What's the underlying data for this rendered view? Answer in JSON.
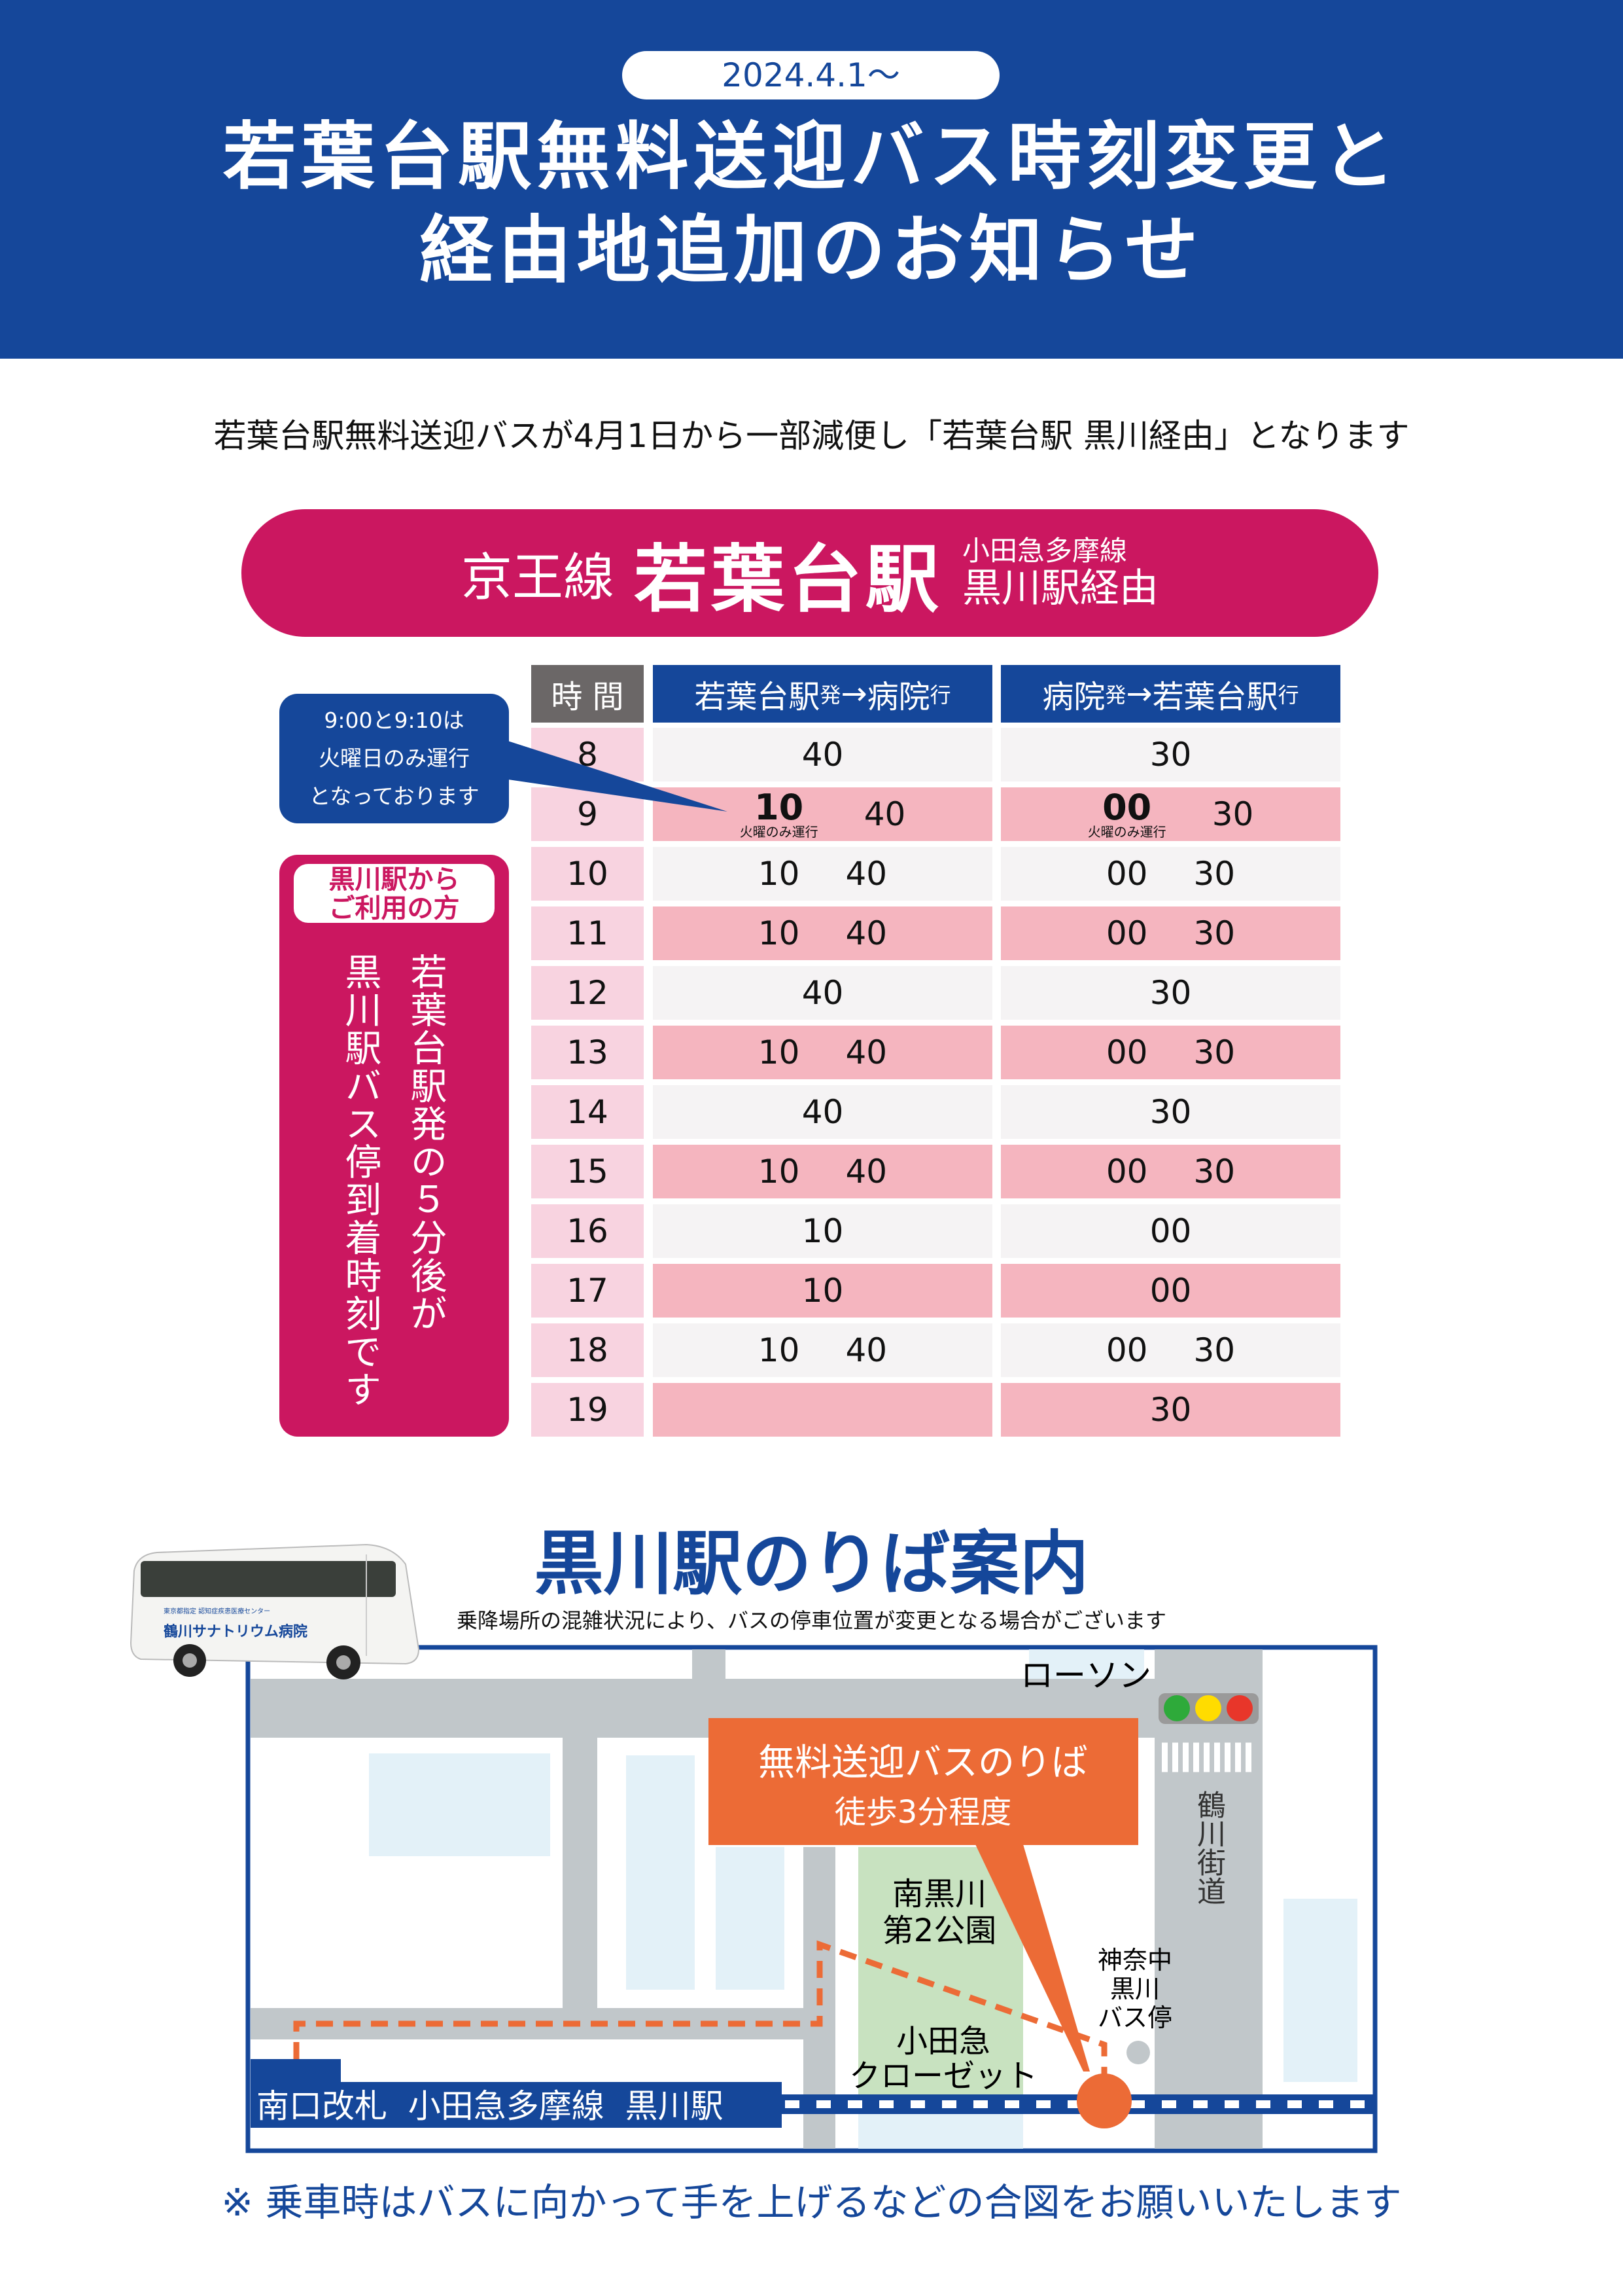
{
  "header": {
    "date": "2024.4.1〜",
    "title_line1": "若葉台駅無料送迎バス時刻変更と",
    "title_line2": "経由地追加のお知らせ"
  },
  "lead": "若葉台駅無料送迎バスが4月1日から一部減便し「若葉台駅 黒川経由」となります",
  "banner": {
    "line": "京王線",
    "station": "若葉台駅",
    "via_line": "小田急多摩線",
    "via": "黒川駅経由"
  },
  "callout": [
    "9:00と9:10は",
    "火曜日のみ運行",
    "となっております"
  ],
  "kurokawa_box": {
    "heading1": "黒川駅から",
    "heading2": "ご利用の方",
    "col1": "若葉台駅発の５分後が",
    "col2": "黒川駅バス停到着時刻です"
  },
  "timetable": {
    "headers": {
      "hour": "時 間",
      "out_from": "若葉台駅",
      "out_dep": "発",
      "out_arrow": "→",
      "out_to": "病院",
      "out_arr": "行",
      "in_from": "病院",
      "in_dep": "発",
      "in_arrow": "→",
      "in_to": "若葉台駅",
      "in_arr": "行"
    },
    "tuesday_note": "火曜のみ運行",
    "rows": [
      {
        "hour": "8",
        "out": [
          "40"
        ],
        "in": [
          "30"
        ]
      },
      {
        "hour": "9",
        "out": [
          "10",
          "40"
        ],
        "in": [
          "00",
          "30"
        ],
        "tuesday_only_first": true
      },
      {
        "hour": "10",
        "out": [
          "10",
          "40"
        ],
        "in": [
          "00",
          "30"
        ]
      },
      {
        "hour": "11",
        "out": [
          "10",
          "40"
        ],
        "in": [
          "00",
          "30"
        ]
      },
      {
        "hour": "12",
        "out": [
          "40"
        ],
        "in": [
          "30"
        ]
      },
      {
        "hour": "13",
        "out": [
          "10",
          "40"
        ],
        "in": [
          "00",
          "30"
        ]
      },
      {
        "hour": "14",
        "out": [
          "40"
        ],
        "in": [
          "30"
        ]
      },
      {
        "hour": "15",
        "out": [
          "10",
          "40"
        ],
        "in": [
          "00",
          "30"
        ]
      },
      {
        "hour": "16",
        "out": [
          "10"
        ],
        "in": [
          "00"
        ]
      },
      {
        "hour": "17",
        "out": [
          "10"
        ],
        "in": [
          "00"
        ]
      },
      {
        "hour": "18",
        "out": [
          "10",
          "40"
        ],
        "in": [
          "00",
          "30"
        ]
      },
      {
        "hour": "19",
        "out": [],
        "in": [
          "30"
        ]
      }
    ]
  },
  "map": {
    "title": "黒川駅のりば案内",
    "note": "乗降場所の混雑状況により、バスの停車位置が変更となる場合がございます",
    "bus_sign_small": "東京都指定 認知症疾患医療センター",
    "bus_sign": "鶴川サナトリウム病院",
    "lawson": "ローソン",
    "stop_box_line1": "無料送迎バスのりば",
    "stop_box_line2": "徒歩3分程度",
    "road": "鶴川街道",
    "park_line1": "南黒川",
    "park_line2": "第2公園",
    "store_line1": "小田急",
    "store_line2": "クローゼット",
    "busstop_line1": "神奈中",
    "busstop_line2": "黒川",
    "busstop_line3": "バス停",
    "station_label": "南口改札  小田急多摩線  黒川駅"
  },
  "footer_note": "※ 乗車時はバスに向かって手を上げるなどの合図をお願いいたします",
  "colors": {
    "blue": "#15479a",
    "magenta": "#cb1760",
    "orange": "#ec6b36",
    "row_pink": "#f5b5bf",
    "park_green": "#c8e2c0"
  }
}
